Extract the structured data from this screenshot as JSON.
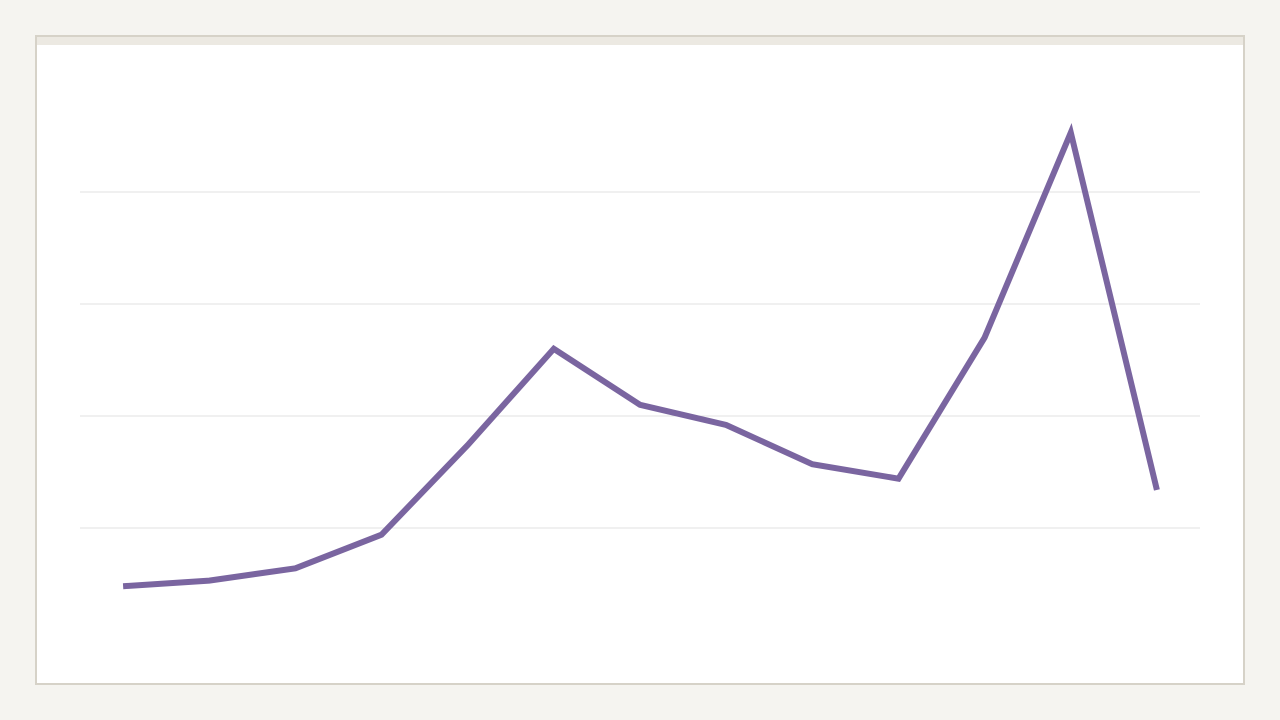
{
  "chart_data": {
    "type": "line",
    "categories": [
      null,
      null,
      null,
      null,
      null,
      null,
      null,
      null,
      null,
      null,
      null,
      null,
      null
    ],
    "values": [
      0.48,
      0.53,
      0.64,
      0.94,
      1.74,
      2.6,
      2.1,
      1.92,
      1.57,
      1.44,
      2.7,
      4.53,
      1.34
    ],
    "color": "#7a65a0",
    "ylim": [
      0,
      5
    ],
    "yticks": [
      1,
      2,
      3,
      4
    ],
    "grid": true
  }
}
